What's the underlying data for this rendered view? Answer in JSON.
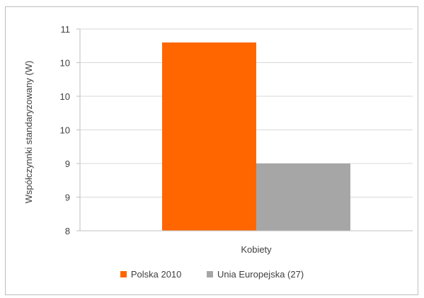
{
  "chart_data": {
    "type": "bar",
    "title": "",
    "xlabel": "",
    "ylabel": "Współczynnki standaryzowany (W)",
    "categories": [
      "Kobiety"
    ],
    "series": [
      {
        "name": "Polska 2010",
        "values": [
          10.8
        ],
        "color": "#ff6600"
      },
      {
        "name": "Unia Europejska (27)",
        "values": [
          9.0
        ],
        "color": "#a6a6a6"
      }
    ],
    "ylim": [
      8.0,
      11.0
    ],
    "yticks": [
      8.0,
      8.5,
      9.0,
      9.5,
      10.0,
      10.5,
      11.0
    ],
    "ytick_labels": [
      "8",
      "9",
      "9",
      "10",
      "10",
      "10",
      "11"
    ],
    "grid": true,
    "legend_position": "bottom"
  }
}
